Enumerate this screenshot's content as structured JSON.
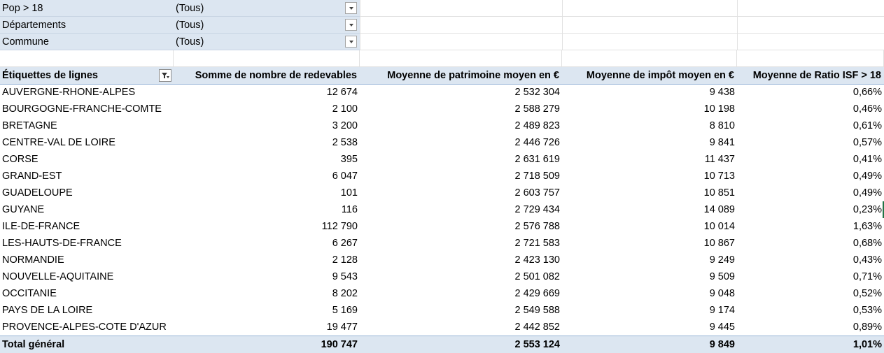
{
  "filters": [
    {
      "label": "Pop > 18",
      "value": "(Tous)"
    },
    {
      "label": "Départements",
      "value": "(Tous)"
    },
    {
      "label": "Commune",
      "value": "(Tous)"
    }
  ],
  "table": {
    "headers": [
      "Étiquettes de lignes",
      "Somme de nombre de redevables",
      "Moyenne de patrimoine moyen en €",
      "Moyenne de impôt moyen en €",
      "Moyenne de Ratio ISF > 18"
    ],
    "rows": [
      [
        "AUVERGNE-RHONE-ALPES",
        "12 674",
        "2 532 304",
        "9 438",
        "0,66%"
      ],
      [
        "BOURGOGNE-FRANCHE-COMTE",
        "2 100",
        "2 588 279",
        "10 198",
        "0,46%"
      ],
      [
        "BRETAGNE",
        "3 200",
        "2 489 823",
        "8 810",
        "0,61%"
      ],
      [
        "CENTRE-VAL DE LOIRE",
        "2 538",
        "2 446 726",
        "9 841",
        "0,57%"
      ],
      [
        "CORSE",
        "395",
        "2 631 619",
        "11 437",
        "0,41%"
      ],
      [
        "GRAND-EST",
        "6 047",
        "2 718 509",
        "10 713",
        "0,49%"
      ],
      [
        "GUADELOUPE",
        "101",
        "2 603 757",
        "10 851",
        "0,49%"
      ],
      [
        "GUYANE",
        "116",
        "2 729 434",
        "14 089",
        "0,23%"
      ],
      [
        "ILE-DE-FRANCE",
        "112 790",
        "2 576 788",
        "10 014",
        "1,63%"
      ],
      [
        "LES-HAUTS-DE-FRANCE",
        "6 267",
        "2 721 583",
        "10 867",
        "0,68%"
      ],
      [
        "NORMANDIE",
        "2 128",
        "2 423 130",
        "9 249",
        "0,43%"
      ],
      [
        "NOUVELLE-AQUITAINE",
        "9 543",
        "2 501 082",
        "9 509",
        "0,71%"
      ],
      [
        "OCCITANIE",
        "8 202",
        "2 429 669",
        "9 048",
        "0,52%"
      ],
      [
        "PAYS DE LA LOIRE",
        "5 169",
        "2 549 588",
        "9 174",
        "0,53%"
      ],
      [
        "PROVENCE-ALPES-COTE D'AZUR",
        "19 477",
        "2 442 852",
        "9 445",
        "0,89%"
      ]
    ],
    "total": [
      "Total général",
      "190 747",
      "2 553 124",
      "9 849",
      "1,01%"
    ]
  },
  "icons": {
    "filter_dropdown": "chevron-down-icon",
    "row_label_filter": "filter-funnel-icon"
  },
  "colors": {
    "pivot_band": "#dce6f1",
    "pivot_border": "#95b3d7",
    "gridline": "#e1e1e1",
    "selection": "#217346"
  }
}
